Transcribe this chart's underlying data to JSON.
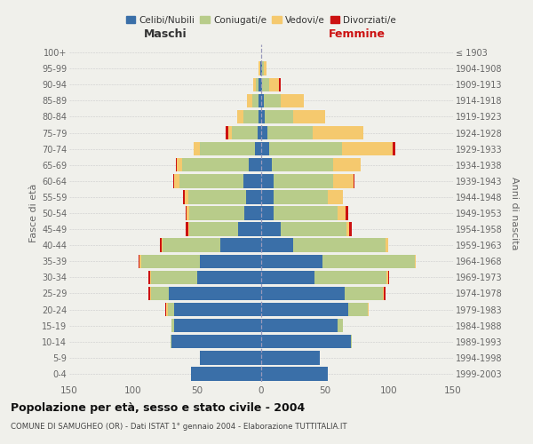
{
  "age_groups": [
    "0-4",
    "5-9",
    "10-14",
    "15-19",
    "20-24",
    "25-29",
    "30-34",
    "35-39",
    "40-44",
    "45-49",
    "50-54",
    "55-59",
    "60-64",
    "65-69",
    "70-74",
    "75-79",
    "80-84",
    "85-89",
    "90-94",
    "95-99",
    "100+"
  ],
  "birth_years": [
    "1999-2003",
    "1994-1998",
    "1989-1993",
    "1984-1988",
    "1979-1983",
    "1974-1978",
    "1969-1973",
    "1964-1968",
    "1959-1963",
    "1954-1958",
    "1949-1953",
    "1944-1948",
    "1939-1943",
    "1934-1938",
    "1929-1933",
    "1924-1928",
    "1919-1923",
    "1914-1918",
    "1909-1913",
    "1904-1908",
    "≤ 1903"
  ],
  "males": {
    "celibe": [
      55,
      48,
      70,
      68,
      68,
      72,
      50,
      48,
      32,
      18,
      13,
      12,
      14,
      10,
      5,
      3,
      2,
      2,
      2,
      1,
      0
    ],
    "coniugato": [
      0,
      0,
      1,
      2,
      5,
      14,
      36,
      46,
      45,
      38,
      43,
      45,
      50,
      52,
      43,
      20,
      12,
      5,
      2,
      0,
      0
    ],
    "vedovo": [
      0,
      0,
      0,
      0,
      1,
      1,
      1,
      1,
      1,
      1,
      2,
      3,
      4,
      4,
      5,
      3,
      5,
      4,
      2,
      1,
      0
    ],
    "divorziato": [
      0,
      0,
      0,
      0,
      1,
      1,
      1,
      1,
      1,
      2,
      1,
      1,
      1,
      1,
      0,
      2,
      0,
      0,
      0,
      0,
      0
    ]
  },
  "females": {
    "nubile": [
      52,
      46,
      70,
      60,
      68,
      65,
      42,
      48,
      25,
      15,
      10,
      10,
      10,
      8,
      6,
      5,
      3,
      2,
      1,
      1,
      0
    ],
    "coniugata": [
      0,
      0,
      1,
      4,
      15,
      30,
      56,
      72,
      72,
      52,
      50,
      42,
      46,
      48,
      57,
      35,
      22,
      13,
      5,
      1,
      0
    ],
    "vedova": [
      0,
      0,
      0,
      0,
      1,
      1,
      1,
      1,
      2,
      2,
      6,
      12,
      16,
      22,
      40,
      40,
      25,
      18,
      8,
      2,
      0
    ],
    "divorziata": [
      0,
      0,
      0,
      0,
      0,
      1,
      1,
      0,
      0,
      2,
      2,
      0,
      1,
      0,
      2,
      0,
      0,
      0,
      1,
      0,
      0
    ]
  },
  "colors": {
    "celibe": "#3a6fa8",
    "coniugato": "#b8cc8a",
    "vedovo": "#f5c96e",
    "divorziato": "#cc1111"
  },
  "title": "Popolazione per età, sesso e stato civile - 2004",
  "subtitle": "COMUNE DI SAMUGHEO (OR) - Dati ISTAT 1° gennaio 2004 - Elaborazione TUTTITALIA.IT",
  "ylabel_left": "Fasce di età",
  "ylabel_right": "Anni di nascita",
  "xlabel_left": "Maschi",
  "xlabel_right": "Femmine",
  "xlim": 150,
  "bg_color": "#f0f0eb",
  "legend_labels": [
    "Celibi/Nubili",
    "Coniugati/e",
    "Vedovi/e",
    "Divorziati/e"
  ]
}
